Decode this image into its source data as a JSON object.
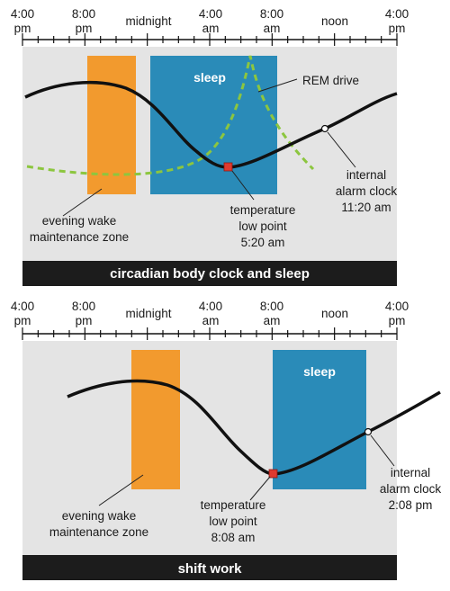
{
  "colors": {
    "background": "#e4e4e4",
    "wake_zone": "#f29a2e",
    "sleep": "#2a8bb8",
    "curve": "#111111",
    "rem_drive": "#8cc63f",
    "temp_marker": "#e03a2f",
    "caption_bar": "#1c1c1c"
  },
  "icons": {
    "temperature_low_point": "red-square-marker",
    "internal_alarm_clock": "open-circle-marker"
  },
  "panels": [
    {
      "axis_ticks": [
        {
          "line1": "4:00",
          "line2": "pm"
        },
        {
          "line1": "8:00",
          "line2": "pm"
        },
        {
          "line1": "midnight",
          "line2": ""
        },
        {
          "line1": "4:00",
          "line2": "am"
        },
        {
          "line1": "8:00",
          "line2": "am"
        },
        {
          "line1": "noon",
          "line2": ""
        },
        {
          "line1": "4:00",
          "line2": "pm"
        }
      ],
      "sleep_label": "sleep",
      "rem_label": "REM drive",
      "wake_zone_label": [
        "evening wake",
        "maintenance zone"
      ],
      "temp_label": [
        "temperature",
        "low point",
        "5:20 am"
      ],
      "alarm_label": [
        "internal",
        "alarm clock",
        "11:20 am"
      ],
      "caption": "circadian body clock and sleep"
    },
    {
      "axis_ticks": [
        {
          "line1": "4:00",
          "line2": "pm"
        },
        {
          "line1": "8:00",
          "line2": "pm"
        },
        {
          "line1": "midnight",
          "line2": ""
        },
        {
          "line1": "4:00",
          "line2": "am"
        },
        {
          "line1": "8:00",
          "line2": "am"
        },
        {
          "line1": "noon",
          "line2": ""
        },
        {
          "line1": "4:00",
          "line2": "pm"
        }
      ],
      "sleep_label": "sleep",
      "wake_zone_label": [
        "evening wake",
        "maintenance zone"
      ],
      "temp_label": [
        "temperature",
        "low point",
        "8:08 am"
      ],
      "alarm_label": [
        "internal",
        "alarm clock",
        "2:08 pm"
      ],
      "caption": "shift work"
    }
  ]
}
